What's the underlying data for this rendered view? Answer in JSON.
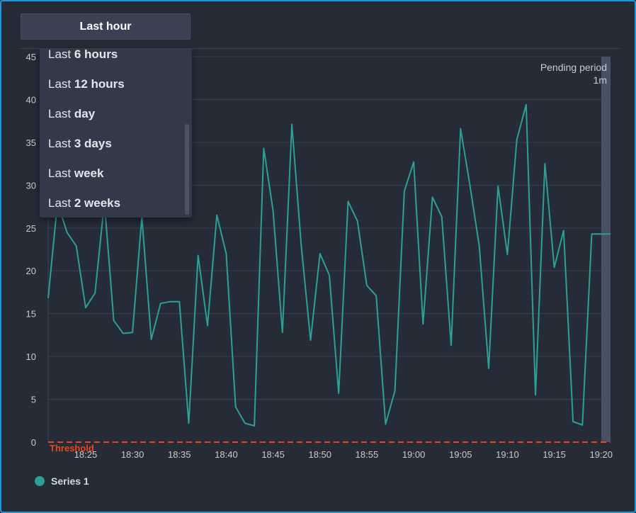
{
  "time_range": {
    "selected_label": "Last hour"
  },
  "dropdown": {
    "items": [
      {
        "prefix": "Last ",
        "bold": "6 hours"
      },
      {
        "prefix": "Last ",
        "bold": "12 hours"
      },
      {
        "prefix": "Last ",
        "bold": "day"
      },
      {
        "prefix": "Last ",
        "bold": "3 days"
      },
      {
        "prefix": "Last ",
        "bold": "week"
      },
      {
        "prefix": "Last ",
        "bold": "2 weeks"
      }
    ]
  },
  "pending": {
    "title": "Pending period",
    "value": "1m"
  },
  "threshold": {
    "label": "Threshold",
    "value": 0,
    "color": "#e8471c"
  },
  "colors": {
    "series": "#2e9f94",
    "grid": "#3a4150",
    "axis_text": "#c7cbd3",
    "pending_band": "#485063"
  },
  "legend": {
    "items": [
      {
        "name": "Series 1",
        "color": "#2e9f94"
      }
    ]
  },
  "chart_data": {
    "type": "line",
    "title": "",
    "xlabel": "",
    "ylabel": "",
    "ylim": [
      0,
      45
    ],
    "yticks": [
      0,
      5,
      10,
      15,
      20,
      25,
      30,
      35,
      40,
      45
    ],
    "xticks": [
      "18:25",
      "18:30",
      "18:35",
      "18:40",
      "18:45",
      "18:50",
      "18:55",
      "19:00",
      "19:05",
      "19:10",
      "19:15",
      "19:20"
    ],
    "x_start": "18:21",
    "x_end": "19:21",
    "grid": true,
    "legend": "bottom-left",
    "series": [
      {
        "name": "Series 1",
        "x": [
          "18:21",
          "18:22",
          "18:23",
          "18:24",
          "18:25",
          "18:26",
          "18:27",
          "18:28",
          "18:29",
          "18:30",
          "18:31",
          "18:32",
          "18:33",
          "18:34",
          "18:35",
          "18:36",
          "18:37",
          "18:38",
          "18:39",
          "18:40",
          "18:41",
          "18:42",
          "18:43",
          "18:44",
          "18:45",
          "18:46",
          "18:47",
          "18:48",
          "18:49",
          "18:50",
          "18:51",
          "18:52",
          "18:53",
          "18:54",
          "18:55",
          "18:56",
          "18:57",
          "18:58",
          "18:59",
          "19:00",
          "19:01",
          "19:02",
          "19:03",
          "19:04",
          "19:05",
          "19:06",
          "19:07",
          "19:08",
          "19:09",
          "19:10",
          "19:11",
          "19:12",
          "19:13",
          "19:14",
          "19:15",
          "19:16",
          "19:17",
          "19:18",
          "19:19",
          "19:20",
          "19:21"
        ],
        "values": [
          16.8,
          28.0,
          24.5,
          22.9,
          15.7,
          17.4,
          28.0,
          14.2,
          12.7,
          12.8,
          26.3,
          12.0,
          16.2,
          16.4,
          16.4,
          2.2,
          21.8,
          13.6,
          26.5,
          22.0,
          4.1,
          2.2,
          1.9,
          34.3,
          27.0,
          12.8,
          37.1,
          23.0,
          11.9,
          22.0,
          19.5,
          5.7,
          28.1,
          25.8,
          18.3,
          17.1,
          2.1,
          6.0,
          29.3,
          32.7,
          13.8,
          28.6,
          26.3,
          11.3,
          36.6,
          30.0,
          22.9,
          8.6,
          29.9,
          21.9,
          35.3,
          39.4,
          5.5,
          32.5,
          20.4,
          24.7,
          2.4,
          2.0,
          24.3,
          24.3,
          24.3
        ]
      }
    ]
  }
}
